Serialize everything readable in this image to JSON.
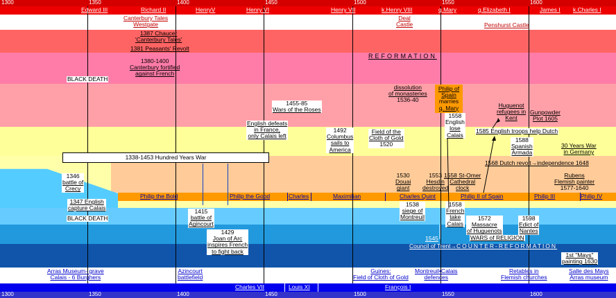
{
  "years_top": [
    "1300",
    "1350",
    "1400",
    "1450",
    "1500",
    "1550",
    "1600"
  ],
  "years_bottom": [
    "1300",
    "1350",
    "1400",
    "1450",
    "1500",
    "1550",
    "1600"
  ],
  "english_rulers": [
    "Edward III",
    "Richard II",
    "HenryV",
    "Henry VI",
    "Henry VII",
    "k.Henry VIII",
    "q.Mary",
    "q.Elizabeth I",
    "James I",
    "k.Charles I"
  ],
  "french_kings": [
    "Charles VII",
    "Louis XI",
    "François I"
  ],
  "burgundy_rulers": [
    "Philip the Bold",
    "Philip the Good",
    "Charles",
    "Maximilian",
    "Charles Quint",
    "Philip II of Spain",
    "Philip III",
    "Philip IV"
  ],
  "events": {
    "canterbury": [
      "Canterbury Tales",
      "Westgate"
    ],
    "deal": [
      "Deal",
      "Castle"
    ],
    "penshurst": "Penshurst Castle",
    "chaucer": [
      "1387 Chaucer",
      "'Canterbury Tales'"
    ],
    "revolt": "1381 Peasants' Revolt",
    "reformation": "REFORMATION",
    "canterbury_fortified": [
      "1380-1400",
      "Canterbury fortified",
      "against French"
    ],
    "black_death_1": "BLACK DEATH",
    "dissolution": [
      "dissolution",
      "of monasteries",
      "1536-40"
    ],
    "philip_mary": [
      "Philip of",
      "Spain",
      "marries",
      "q. Mary"
    ],
    "roses": [
      "1455-85",
      "Wars of the Roses"
    ],
    "huguenot": [
      "Huguenot",
      "refugees in",
      "Kent"
    ],
    "gunpowder": [
      "Gunpowder",
      "Plot 1605"
    ],
    "calais_lost": [
      "1558",
      "English",
      "lose",
      "Calais"
    ],
    "english_defeats": [
      "English defeats",
      "in France,",
      "only Calais left"
    ],
    "columbus": [
      "1492",
      "Columbus",
      "sails to",
      "America"
    ],
    "cloth_gold": [
      "Field of the",
      "Cloth of Gold",
      "1520"
    ],
    "troops": "1585 English troops help Dutch",
    "armada": [
      "1588",
      "Spanish",
      "Armada"
    ],
    "thirty_years": [
      "30 Years War",
      "in Germany"
    ],
    "hundred_years": "1338-1453 Hundred Years War",
    "dutch_revolt": "1568 Dutch revolt→independence 1648",
    "crecy": [
      "1346",
      "battle of",
      "Crecy"
    ],
    "douai": [
      "1530",
      "Douai",
      "giant"
    ],
    "hesdin": [
      "1553",
      "Hesdin",
      "destroyed"
    ],
    "st_omer": [
      "1558 St-Omer",
      "Cathedral",
      "clock"
    ],
    "rubens": [
      "Rubens",
      "Flemish painter",
      "1577-1640"
    ],
    "capture_calais": [
      "1347 English",
      "capture Calais"
    ],
    "black_death_2": "BLACK DEATH",
    "agincourt": [
      "1415",
      "battle of",
      "Agincourt"
    ],
    "montreuil": [
      "1538",
      "siege of",
      "Montreuil"
    ],
    "french_take": [
      "1558",
      "French",
      "take",
      "Calais"
    ],
    "massacre": [
      "1572",
      "Massacre",
      "of Huguenots"
    ],
    "nantes": [
      "1598",
      "Edict of",
      "Nantes"
    ],
    "joan": [
      "1429",
      "Joan of Arc",
      "inspires French",
      "to fight back"
    ],
    "wars_religion": "WARS of RELIGION",
    "trent_year": "1545",
    "trent": "Council of Trent→",
    "counter": "COUNTER-REFORMATION",
    "first_mays": [
      "1st \"Mays\"",
      "painting 1630"
    ]
  },
  "footer": {
    "arras": [
      "Arras Museum- grave",
      "Calais - 6 Burghers"
    ],
    "azincourt": [
      "Azincourt",
      "battlefield"
    ],
    "guines": [
      "Guines:",
      "Field of Cloth of Gold"
    ],
    "montreuil_calais": [
      "Montreuil•Calais",
      "defences"
    ],
    "retables": [
      "Retables in",
      "Flemish churches"
    ],
    "salle": [
      "Salle des Mays",
      "Arras museum"
    ]
  },
  "colors": {
    "red_bar": "#e60000",
    "blue_bar": "#0000ee",
    "band1": "#ff6060",
    "band2": "#ff7aa0",
    "band3": "#ffa0a0",
    "band4": "#ffff99",
    "orange_bar": "#ff9900",
    "sky": "#55ccff"
  }
}
